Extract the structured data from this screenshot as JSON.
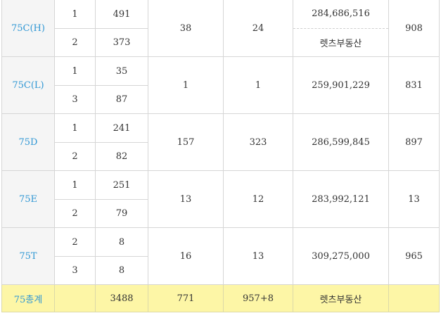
{
  "rows": [
    {
      "type": "75C(H)",
      "subs": [
        {
          "floor": "1",
          "count": "491"
        },
        {
          "floor": "2",
          "count": "373"
        }
      ],
      "col4": "38",
      "col5": "24",
      "price": "284,686,516",
      "price_note": "렛츠부동산",
      "col7": "908"
    },
    {
      "type": "75C(L)",
      "subs": [
        {
          "floor": "1",
          "count": "35"
        },
        {
          "floor": "3",
          "count": "87"
        }
      ],
      "col4": "1",
      "col5": "1",
      "price": "259,901,229",
      "col7": "831"
    },
    {
      "type": "75D",
      "subs": [
        {
          "floor": "1",
          "count": "241"
        },
        {
          "floor": "2",
          "count": "82"
        }
      ],
      "col4": "157",
      "col5": "323",
      "price": "286,599,845",
      "col7": "897"
    },
    {
      "type": "75E",
      "subs": [
        {
          "floor": "1",
          "count": "251"
        },
        {
          "floor": "2",
          "count": "79"
        }
      ],
      "col4": "13",
      "col5": "12",
      "price": "283,992,121",
      "col7": "13"
    },
    {
      "type": "75T",
      "subs": [
        {
          "floor": "2",
          "count": "8"
        },
        {
          "floor": "3",
          "count": "8"
        }
      ],
      "col4": "16",
      "col5": "13",
      "price": "309,275,000",
      "col7": "965"
    }
  ],
  "total": {
    "type": "75총계",
    "floor": "",
    "count": "3488",
    "col4": "771",
    "col5": "957+8",
    "price": "렛츠부동산",
    "col7": ""
  },
  "colors": {
    "type_text": "#2f97d4",
    "type_bg": "#f5f5f5",
    "total_bg": "#fdf6a6",
    "border": "#d6d6d6"
  }
}
